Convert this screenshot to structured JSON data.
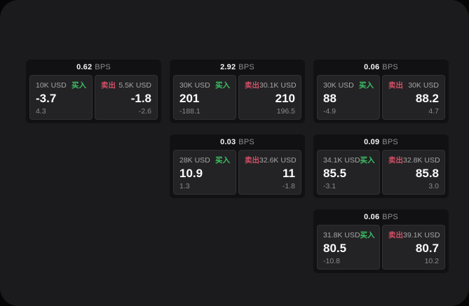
{
  "labels": {
    "buy": "买入",
    "sell": "卖出",
    "bps": "BPS"
  },
  "colors": {
    "surface": "#1b1b1d",
    "card": "#111113",
    "panel": "#232325",
    "buy": "#3cc264",
    "sell": "#d04f66",
    "value": "#fafafa",
    "muted": "#8a8a8a"
  },
  "cards": [
    {
      "bps": "0.62",
      "buy": {
        "amount": "10K USD",
        "value": "-3.7",
        "delta": "4.3"
      },
      "sell": {
        "amount": "5.5K USD",
        "value": "-1.8",
        "delta": "-2.6"
      }
    },
    {
      "bps": "2.92",
      "buy": {
        "amount": "30K USD",
        "value": "201",
        "delta": "-188.1"
      },
      "sell": {
        "amount": "30.1K USD",
        "value": "210",
        "delta": "196.5"
      }
    },
    {
      "bps": "0.06",
      "buy": {
        "amount": "30K USD",
        "value": "88",
        "delta": "-4.9"
      },
      "sell": {
        "amount": "30K USD",
        "value": "88.2",
        "delta": "4.7"
      }
    },
    {
      "bps": "0.03",
      "buy": {
        "amount": "28K USD",
        "value": "10.9",
        "delta": "1.3"
      },
      "sell": {
        "amount": "32.6K USD",
        "value": "11",
        "delta": "-1.8"
      }
    },
    {
      "bps": "0.09",
      "buy": {
        "amount": "34.1K USD",
        "value": "85.5",
        "delta": "-3.1"
      },
      "sell": {
        "amount": "32.8K USD",
        "value": "85.8",
        "delta": "3.0"
      }
    },
    {
      "bps": "0.06",
      "buy": {
        "amount": "31.8K USD",
        "value": "80.5",
        "delta": "-10.8"
      },
      "sell": {
        "amount": "39.1K USD",
        "value": "80.7",
        "delta": "10.2"
      }
    }
  ]
}
